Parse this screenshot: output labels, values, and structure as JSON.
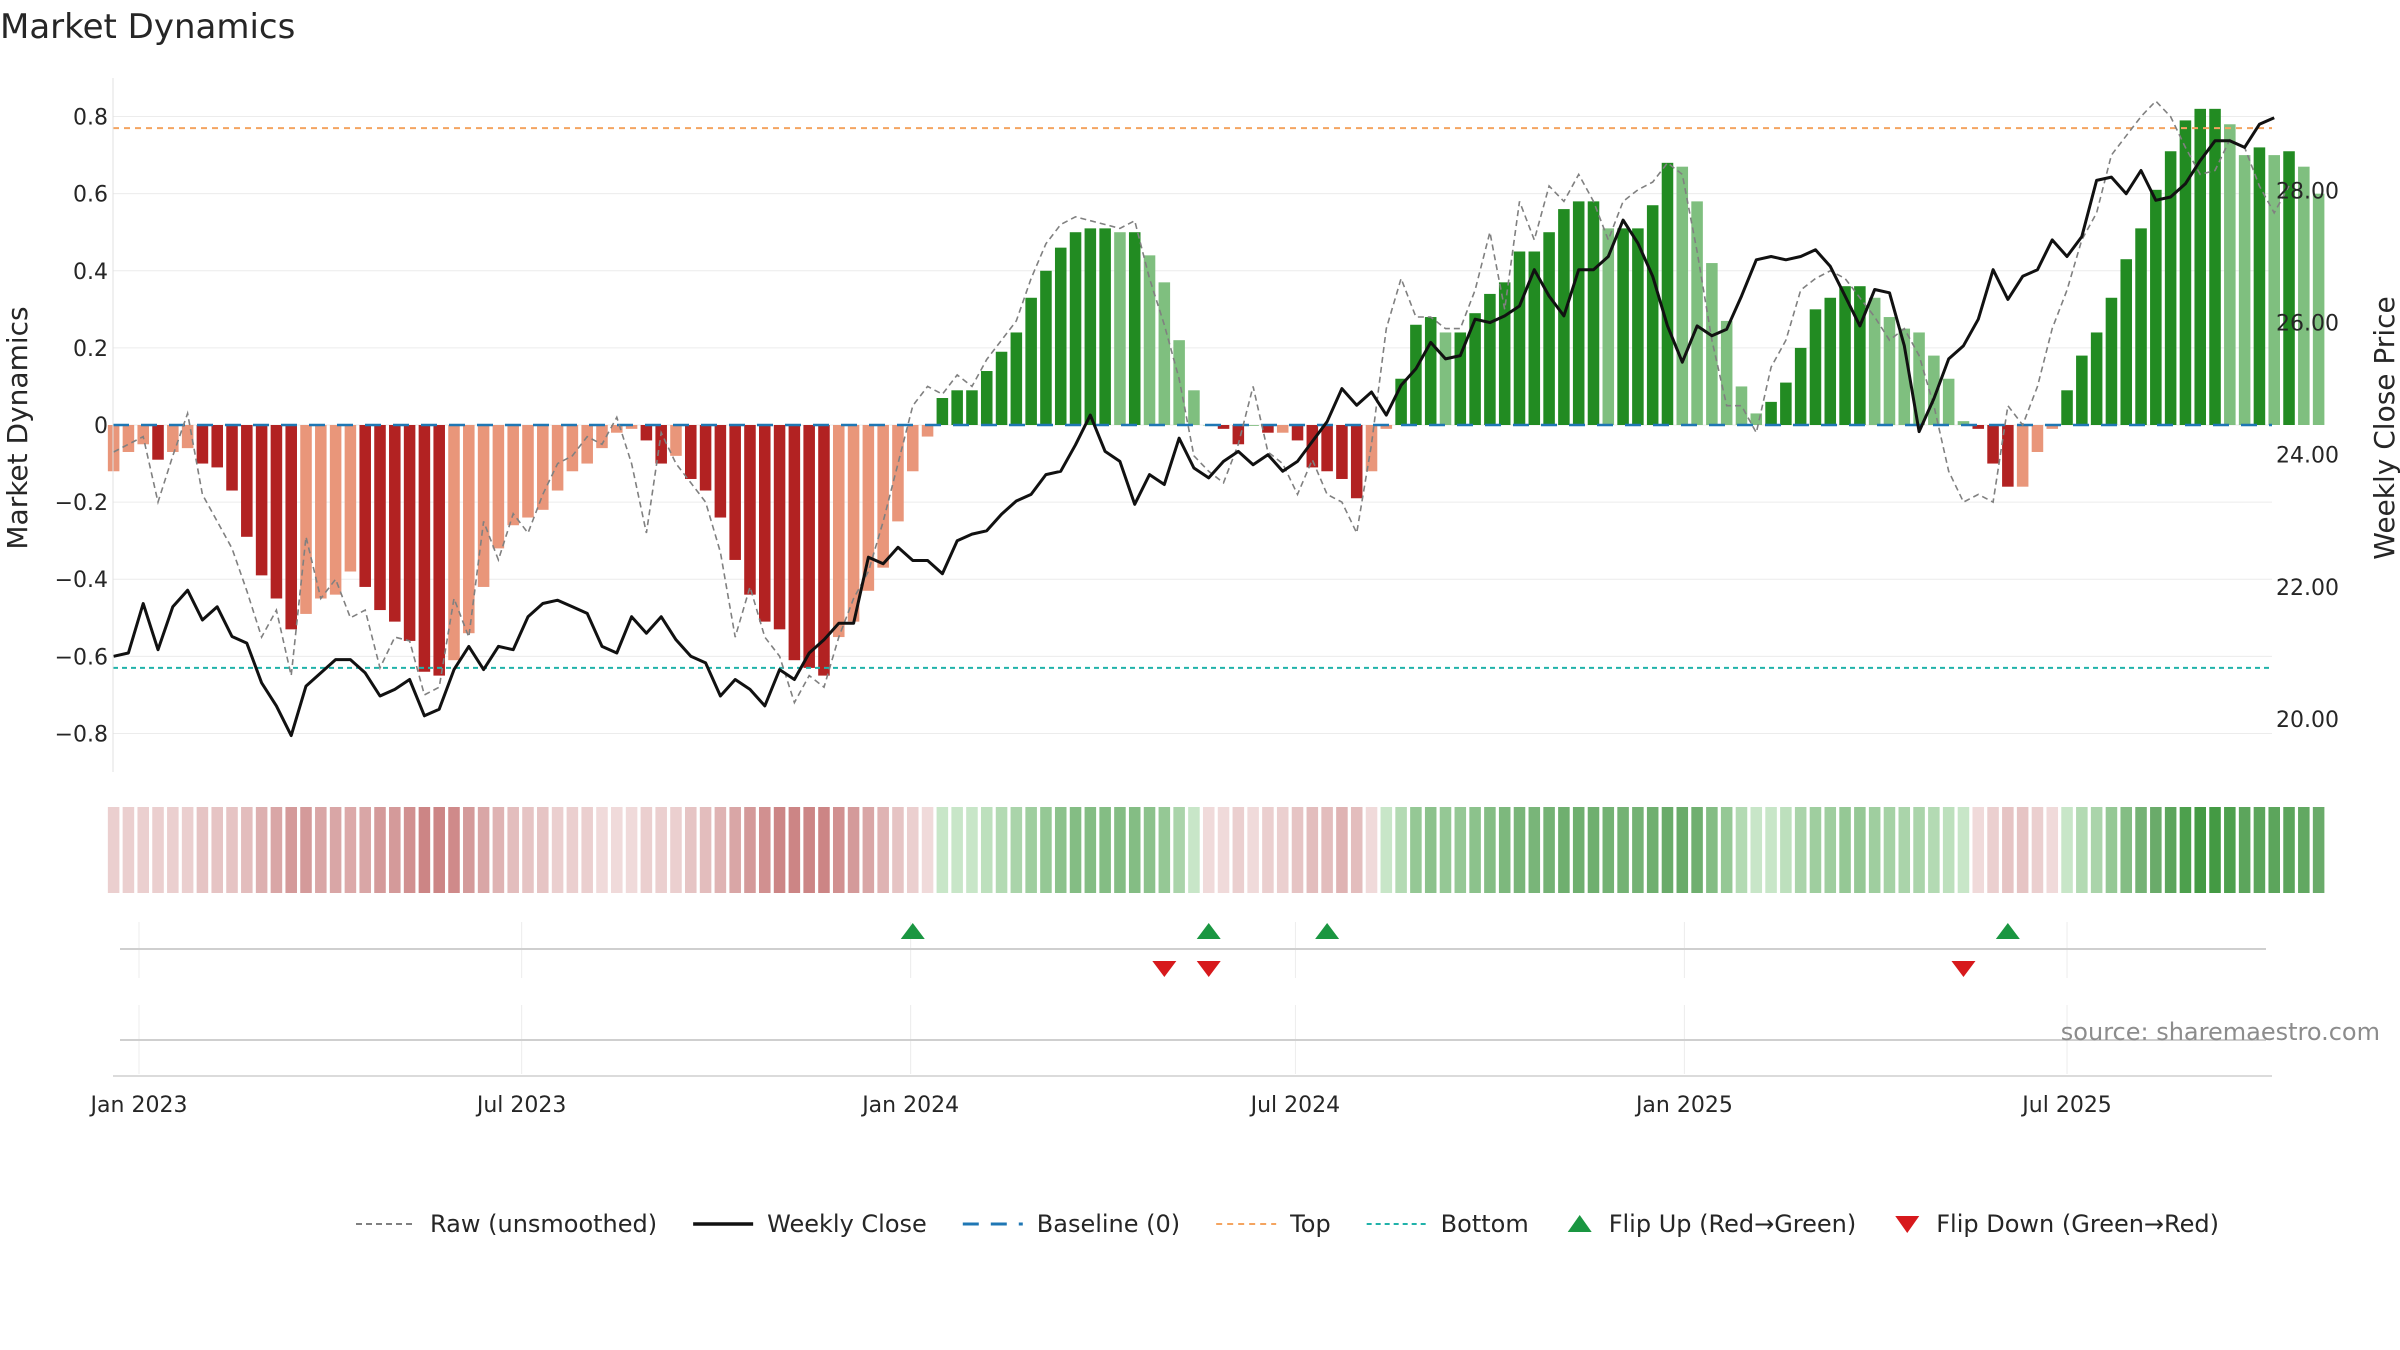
{
  "chart_data": {
    "type": "bar",
    "title": "Market Dynamics",
    "ylabel_left": "Market Dynamics",
    "ylabel_right": "Weekly Close Price",
    "ylim_left": [
      -0.9,
      0.9
    ],
    "ylim_right": [
      19.2,
      29.7
    ],
    "yticks_left": [
      {
        "v": 0.8,
        "label": "0.8"
      },
      {
        "v": 0.6,
        "label": "0.6"
      },
      {
        "v": 0.4,
        "label": "0.4"
      },
      {
        "v": 0.2,
        "label": "0.2"
      },
      {
        "v": 0,
        "label": "0"
      },
      {
        "v": -0.2,
        "label": "−0.2"
      },
      {
        "v": -0.4,
        "label": "−0.4"
      },
      {
        "v": -0.6,
        "label": "−0.6"
      },
      {
        "v": -0.8,
        "label": "−0.8"
      }
    ],
    "yticks_right": [
      {
        "v": 20,
        "label": "20.00"
      },
      {
        "v": 22,
        "label": "22.00"
      },
      {
        "v": 24,
        "label": "24.00"
      },
      {
        "v": 26,
        "label": "26.00"
      },
      {
        "v": 28,
        "label": "28.00"
      }
    ],
    "x_start": "2023-01-01",
    "x_end": "2025-10-05",
    "x_ticks": [
      {
        "date": "2023-01-01",
        "label": "Jan 2023"
      },
      {
        "date": "2023-07-01",
        "label": "Jul 2023"
      },
      {
        "date": "2024-01-01",
        "label": "Jan 2024"
      },
      {
        "date": "2024-07-01",
        "label": "Jul 2024"
      },
      {
        "date": "2025-01-01",
        "label": "Jan 2025"
      },
      {
        "date": "2025-07-01",
        "label": "Jul 2025"
      }
    ],
    "first_week": "2022-12-20",
    "top_line": 0.77,
    "bottom_line": -0.63,
    "baseline": 0,
    "bars": [
      -0.12,
      -0.07,
      -0.05,
      -0.09,
      -0.07,
      -0.06,
      -0.1,
      -0.11,
      -0.17,
      -0.29,
      -0.39,
      -0.45,
      -0.53,
      -0.49,
      -0.45,
      -0.44,
      -0.38,
      -0.42,
      -0.48,
      -0.51,
      -0.56,
      -0.64,
      -0.65,
      -0.61,
      -0.54,
      -0.42,
      -0.32,
      -0.26,
      -0.24,
      -0.22,
      -0.17,
      -0.12,
      -0.1,
      -0.06,
      -0.02,
      -0.01,
      -0.04,
      -0.1,
      -0.08,
      -0.14,
      -0.17,
      -0.24,
      -0.35,
      -0.44,
      -0.51,
      -0.53,
      -0.61,
      -0.63,
      -0.65,
      -0.55,
      -0.51,
      -0.43,
      -0.37,
      -0.25,
      -0.12,
      -0.03,
      0.07,
      0.09,
      0.09,
      0.14,
      0.19,
      0.24,
      0.33,
      0.4,
      0.46,
      0.5,
      0.51,
      0.51,
      0.5,
      0.5,
      0.44,
      0.37,
      0.22,
      0.09,
      0,
      -0.01,
      -0.05,
      0,
      -0.02,
      -0.02,
      -0.04,
      -0.11,
      -0.12,
      -0.14,
      -0.19,
      -0.12,
      -0.01,
      0.12,
      0.26,
      0.28,
      0.24,
      0.24,
      0.29,
      0.34,
      0.37,
      0.45,
      0.45,
      0.5,
      0.56,
      0.58,
      0.58,
      0.51,
      0.51,
      0.51,
      0.57,
      0.68,
      0.67,
      0.58,
      0.42,
      0.27,
      0.1,
      0.03,
      0.06,
      0.11,
      0.2,
      0.3,
      0.33,
      0.36,
      0.36,
      0.33,
      0.28,
      0.25,
      0.24,
      0.18,
      0.12,
      0.01,
      -0.01,
      -0.1,
      -0.16,
      -0.16,
      -0.07,
      -0.01,
      0.09,
      0.18,
      0.24,
      0.33,
      0.43,
      0.51,
      0.61,
      0.71,
      0.79,
      0.82,
      0.82,
      0.78,
      0.7,
      0.72,
      0.7,
      0.71,
      0.67,
      0.6
    ],
    "raw": [
      -0.07,
      -0.05,
      -0.03,
      -0.2,
      -0.08,
      0.03,
      -0.18,
      -0.25,
      -0.32,
      -0.43,
      -0.55,
      -0.48,
      -0.65,
      -0.29,
      -0.45,
      -0.4,
      -0.5,
      -0.48,
      -0.63,
      -0.55,
      -0.56,
      -0.7,
      -0.68,
      -0.45,
      -0.55,
      -0.25,
      -0.35,
      -0.23,
      -0.28,
      -0.18,
      -0.1,
      -0.08,
      -0.03,
      -0.05,
      0.02,
      -0.1,
      -0.28,
      -0.02,
      -0.1,
      -0.15,
      -0.2,
      -0.33,
      -0.55,
      -0.42,
      -0.55,
      -0.6,
      -0.72,
      -0.65,
      -0.68,
      -0.55,
      -0.45,
      -0.38,
      -0.25,
      -0.1,
      0.05,
      0.1,
      0.08,
      0.13,
      0.1,
      0.17,
      0.22,
      0.27,
      0.38,
      0.47,
      0.52,
      0.54,
      0.53,
      0.52,
      0.51,
      0.53,
      0.38,
      0.26,
      0.12,
      -0.08,
      -0.12,
      -0.15,
      -0.05,
      0.1,
      -0.07,
      -0.1,
      -0.18,
      -0.09,
      -0.18,
      -0.2,
      -0.28,
      -0.05,
      0.25,
      0.38,
      0.28,
      0.28,
      0.25,
      0.25,
      0.35,
      0.5,
      0.3,
      0.58,
      0.48,
      0.62,
      0.58,
      0.65,
      0.58,
      0.48,
      0.58,
      0.61,
      0.63,
      0.68,
      0.65,
      0.45,
      0.22,
      0.05,
      0.05,
      -0.02,
      0.15,
      0.22,
      0.35,
      0.38,
      0.4,
      0.38,
      0.33,
      0.28,
      0.22,
      0.25,
      0.18,
      0.05,
      -0.12,
      -0.2,
      -0.18,
      -0.2,
      0.05,
      0.0,
      0.1,
      0.25,
      0.35,
      0.48,
      0.55,
      0.7,
      0.75,
      0.8,
      0.84,
      0.8,
      0.72,
      0.65,
      0.66,
      0.74,
      0.72,
      0.62,
      0.55,
      0.62
    ],
    "close": [
      20.95,
      21.0,
      21.75,
      21.05,
      21.7,
      21.95,
      21.5,
      21.7,
      21.25,
      21.15,
      20.55,
      20.2,
      19.75,
      20.5,
      20.7,
      20.9,
      20.9,
      20.7,
      20.35,
      20.45,
      20.6,
      20.05,
      20.15,
      20.75,
      21.1,
      20.75,
      21.1,
      21.05,
      21.55,
      21.75,
      21.8,
      21.7,
      21.6,
      21.1,
      21.0,
      21.55,
      21.3,
      21.55,
      21.2,
      20.95,
      20.85,
      20.35,
      20.6,
      20.45,
      20.2,
      20.75,
      20.6,
      21.0,
      21.2,
      21.45,
      21.45,
      22.45,
      22.35,
      22.6,
      22.4,
      22.4,
      22.2,
      22.7,
      22.8,
      22.85,
      23.1,
      23.3,
      23.4,
      23.7,
      23.75,
      24.15,
      24.6,
      24.05,
      23.9,
      23.25,
      23.7,
      23.55,
      24.25,
      23.8,
      23.65,
      23.9,
      24.05,
      23.85,
      24.0,
      23.75,
      23.9,
      24.2,
      24.5,
      25.0,
      24.75,
      24.95,
      24.6,
      25.05,
      25.3,
      25.7,
      25.45,
      25.5,
      26.05,
      26.0,
      26.1,
      26.25,
      26.8,
      26.4,
      26.1,
      26.8,
      26.8,
      27.0,
      27.55,
      27.2,
      26.7,
      25.95,
      25.4,
      25.95,
      25.8,
      25.9,
      26.4,
      26.95,
      27.0,
      26.95,
      27.0,
      27.1,
      26.85,
      26.4,
      25.95,
      26.5,
      26.45,
      25.65,
      24.35,
      24.85,
      25.45,
      25.65,
      26.05,
      26.8,
      26.35,
      26.7,
      26.8,
      27.25,
      27.0,
      27.3,
      28.15,
      28.2,
      27.95,
      28.3,
      27.85,
      27.9,
      28.1,
      28.45,
      28.75,
      28.75,
      28.65,
      29.0,
      29.1
    ],
    "strip_colors": [
      "#ebcfcf",
      "#ebcfcf",
      "#ebcfcf",
      "#ebcfcf",
      "#ebcfcf",
      "#ebcfcf",
      "#e6c4c4",
      "#e6c4c4",
      "#e6c4c4",
      "#e3bdbd",
      "#ddb0b0",
      "#d9a6a6",
      "#d49a9a",
      "#d49a9a",
      "#d9a6a6",
      "#d9a6a6",
      "#dca9a9",
      "#d9a6a6",
      "#d49a9a",
      "#d49a9a",
      "#d19090",
      "#cc8585",
      "#cc8585",
      "#cf8a8a",
      "#d49a9a",
      "#d9a6a6",
      "#dfb3b3",
      "#e3bdbd",
      "#e6c4c4",
      "#e6c4c4",
      "#ebcfcf",
      "#ebcfcf",
      "#ebcfcf",
      "#f0dada",
      "#f0dada",
      "#f0dada",
      "#ebcfcf",
      "#ebcfcf",
      "#ebcfcf",
      "#e6c4c4",
      "#e3bdbd",
      "#dfb3b3",
      "#d9a6a6",
      "#d49a9a",
      "#d19090",
      "#cc8585",
      "#cc8585",
      "#cc8585",
      "#cc8585",
      "#d19090",
      "#d49a9a",
      "#d9a6a6",
      "#dfb3b3",
      "#e6c4c4",
      "#ebcfcf",
      "#f0dada",
      "#c8e6c8",
      "#c8e6c8",
      "#c8e6c8",
      "#bde0bd",
      "#b3dab3",
      "#aad4aa",
      "#9fce9f",
      "#95c895",
      "#8cc28c",
      "#84bd84",
      "#84bd84",
      "#84bd84",
      "#84bd84",
      "#84bd84",
      "#8cc28c",
      "#95c895",
      "#aad4aa",
      "#c8e6c8",
      "#f0dada",
      "#f0dada",
      "#ebcfcf",
      "#f0dada",
      "#ebcfcf",
      "#ebcfcf",
      "#e6c4c4",
      "#e3bdbd",
      "#e3bdbd",
      "#dfb3b3",
      "#e3bdbd",
      "#f0dada",
      "#c8e6c8",
      "#b3dab3",
      "#95c895",
      "#8cc28c",
      "#95c895",
      "#95c895",
      "#8cc28c",
      "#84bd84",
      "#7db87d",
      "#79b579",
      "#79b579",
      "#74b274",
      "#6faf6f",
      "#6faf6f",
      "#6faf6f",
      "#74b274",
      "#74b274",
      "#74b274",
      "#6faf6f",
      "#6aab6a",
      "#6aab6a",
      "#6faf6f",
      "#84bd84",
      "#95c895",
      "#b3dab3",
      "#c8e6c8",
      "#c8e6c8",
      "#bde0bd",
      "#aad4aa",
      "#9fce9f",
      "#9fce9f",
      "#95c895",
      "#95c895",
      "#9fce9f",
      "#a5d2a5",
      "#aad4aa",
      "#aad4aa",
      "#b3dab3",
      "#bde0bd",
      "#c8e6c8",
      "#f0dada",
      "#ebcfcf",
      "#e6c4c4",
      "#e6c4c4",
      "#ebcfcf",
      "#f0dada",
      "#c8e6c8",
      "#b3dab3",
      "#aad4aa",
      "#95c895",
      "#84bd84",
      "#74b274",
      "#6aab6a",
      "#5ca55c",
      "#4da04d",
      "#449a44",
      "#449a44",
      "#4da04d",
      "#5ca55c",
      "#5ca55c",
      "#5ca55c",
      "#5ca55c",
      "#62a862",
      "#6aab6a"
    ],
    "flip_up_weeks": [
      54,
      74,
      82,
      128
    ],
    "flip_down_weeks": [
      71,
      74,
      125
    ],
    "colors": {
      "bar_red": "#b22222",
      "bar_salmon": "#e9967a",
      "bar_green": "#228b22",
      "bar_lightgreen": "#7fbf7f",
      "raw": "#808080",
      "close": "#111111",
      "baseline": "#1f77b4",
      "top": "#f4a460",
      "bottom": "#20b2aa",
      "flip_up": "#1a9641",
      "flip_down": "#d7191c"
    },
    "legend": [
      {
        "label": "Raw (unsmoothed)",
        "style": "raw"
      },
      {
        "label": "Weekly Close",
        "style": "close"
      },
      {
        "label": "Baseline (0)",
        "style": "baseline"
      },
      {
        "label": "Top",
        "style": "top"
      },
      {
        "label": "Bottom",
        "style": "bottom"
      },
      {
        "label": "Flip Up (Red→Green)",
        "style": "flip_up"
      },
      {
        "label": "Flip Down (Green→Red)",
        "style": "flip_down"
      }
    ],
    "source": "source: sharemaestro.com"
  }
}
